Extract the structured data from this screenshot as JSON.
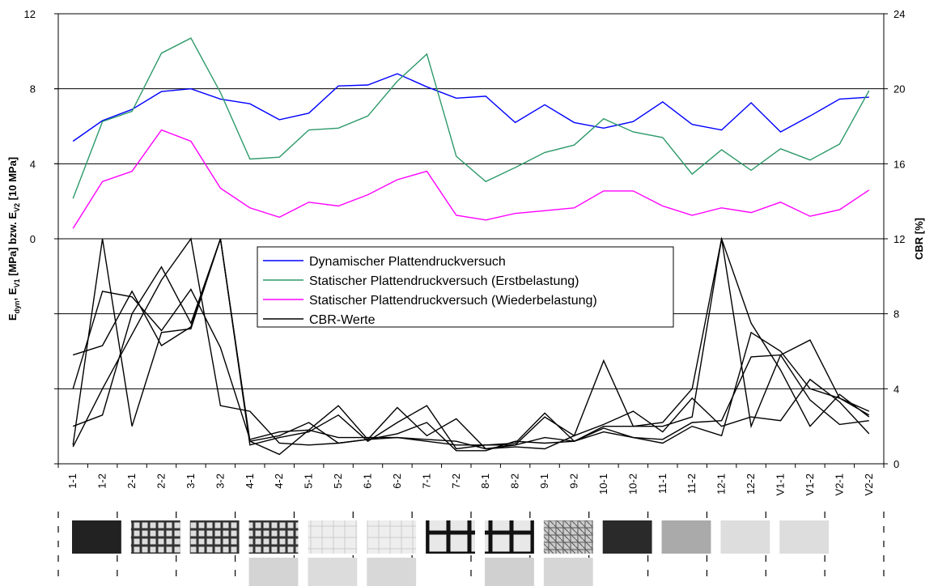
{
  "chart_data": {
    "type": "line",
    "y_label_parts": [
      "E",
      "dyn",
      ", E",
      "V1",
      " [MPa] bzw. E",
      "V2",
      " [10 MPa]"
    ],
    "y2_label": "CBR [%]",
    "categories": [
      "1-1",
      "1-2",
      "2-1",
      "2-2",
      "3-1",
      "3-2",
      "4-1",
      "4-2",
      "5-1",
      "5-2",
      "6-1",
      "6-2",
      "7-1",
      "7-2",
      "8-1",
      "8-2",
      "9-1",
      "9-2",
      "10-1",
      "10-2",
      "11-1",
      "11-2",
      "12-1",
      "12-2",
      "V1-1",
      "V1-2",
      "V2-1",
      "V2-2"
    ],
    "ylim": [
      -12,
      12
    ],
    "yticks": [
      0,
      4,
      8,
      12
    ],
    "y2lim": [
      0,
      24
    ],
    "y2ticks": [
      0,
      4,
      8,
      12,
      16,
      20,
      24
    ],
    "grid": true,
    "series": [
      {
        "name": "Dynamischer Plattendruckversuch",
        "color": "#0000ff",
        "values": [
          5.2,
          6.3,
          6.9,
          7.85,
          8.0,
          7.45,
          7.2,
          6.35,
          6.7,
          8.15,
          8.2,
          8.8,
          8.1,
          7.5,
          7.6,
          6.2,
          7.15,
          6.2,
          5.9,
          6.25,
          7.3,
          6.1,
          5.8,
          7.25,
          5.7,
          6.55,
          7.45,
          7.55
        ]
      },
      {
        "name": "Statischer Plattendruckversuch (Erstbelastung)",
        "color": "#2e9a6a",
        "values": [
          2.15,
          6.25,
          6.8,
          9.9,
          10.7,
          7.8,
          4.25,
          4.35,
          5.8,
          5.9,
          6.55,
          8.4,
          9.85,
          4.4,
          3.05,
          3.8,
          4.6,
          5.0,
          6.4,
          5.7,
          5.4,
          3.45,
          4.75,
          3.65,
          4.8,
          4.2,
          5.05,
          7.9
        ]
      },
      {
        "name": "Statischer Plattendruckversuch (Wiederbelastung)",
        "color": "#ff00ff",
        "values": [
          0.55,
          3.05,
          3.6,
          5.8,
          5.2,
          2.7,
          1.65,
          1.15,
          1.95,
          1.75,
          2.35,
          3.15,
          3.6,
          1.25,
          1.0,
          1.35,
          1.5,
          1.65,
          2.55,
          2.55,
          1.75,
          1.25,
          1.65,
          1.4,
          1.95,
          1.2,
          1.55,
          2.6
        ]
      },
      {
        "name": "CBR-Werte",
        "color": "#000000",
        "axis": "y2",
        "lines": [
          [
            1,
            12,
            2,
            7,
            7.2,
            12,
            1.2,
            1.5,
            2.2,
            1.1,
            1.3,
            1.4,
            1.2,
            1,
            1,
            1.1,
            2.7,
            1.2,
            2,
            2,
            2,
            2.5,
            12,
            2,
            5.8,
            6.6,
            3.5,
            2.6
          ],
          [
            5.8,
            6.3,
            9.2,
            6.3,
            7.3,
            12,
            1.2,
            0.5,
            1.8,
            3.1,
            1.3,
            3,
            1.5,
            2.4,
            0.8,
            1,
            2.5,
            1.5,
            5.5,
            2,
            2.2,
            4,
            12,
            7.5,
            5,
            2,
            3.7,
            2.5
          ],
          [
            2,
            2.6,
            8,
            10.5,
            7.5,
            12,
            1,
            1.4,
            1.7,
            2.6,
            1.2,
            2.2,
            3.1,
            0.8,
            1,
            1,
            1.4,
            1.2,
            1.9,
            1.4,
            1.3,
            2.2,
            2.3,
            5.7,
            5.8,
            3.4,
            2.1,
            2.3
          ],
          [
            4,
            9.2,
            8.9,
            7.1,
            9.3,
            6.2,
            1.3,
            1.7,
            1.8,
            1.4,
            1.4,
            1.4,
            1.3,
            1.2,
            0.8,
            0.9,
            0.8,
            1.5,
            2.1,
            2.8,
            1.7,
            3.5,
            2,
            2.5,
            2.3,
            4.5,
            3.3,
            1.6
          ],
          [
            0.9,
            4,
            6.9,
            9.8,
            12,
            3.1,
            2.8,
            1.1,
            1,
            1.1,
            1.3,
            1.6,
            2.2,
            0.7,
            0.7,
            1.2,
            1.1,
            1.2,
            1.7,
            1.4,
            1.1,
            2,
            1.5,
            7,
            6,
            4,
            3.5,
            2.8
          ]
        ]
      }
    ]
  }
}
